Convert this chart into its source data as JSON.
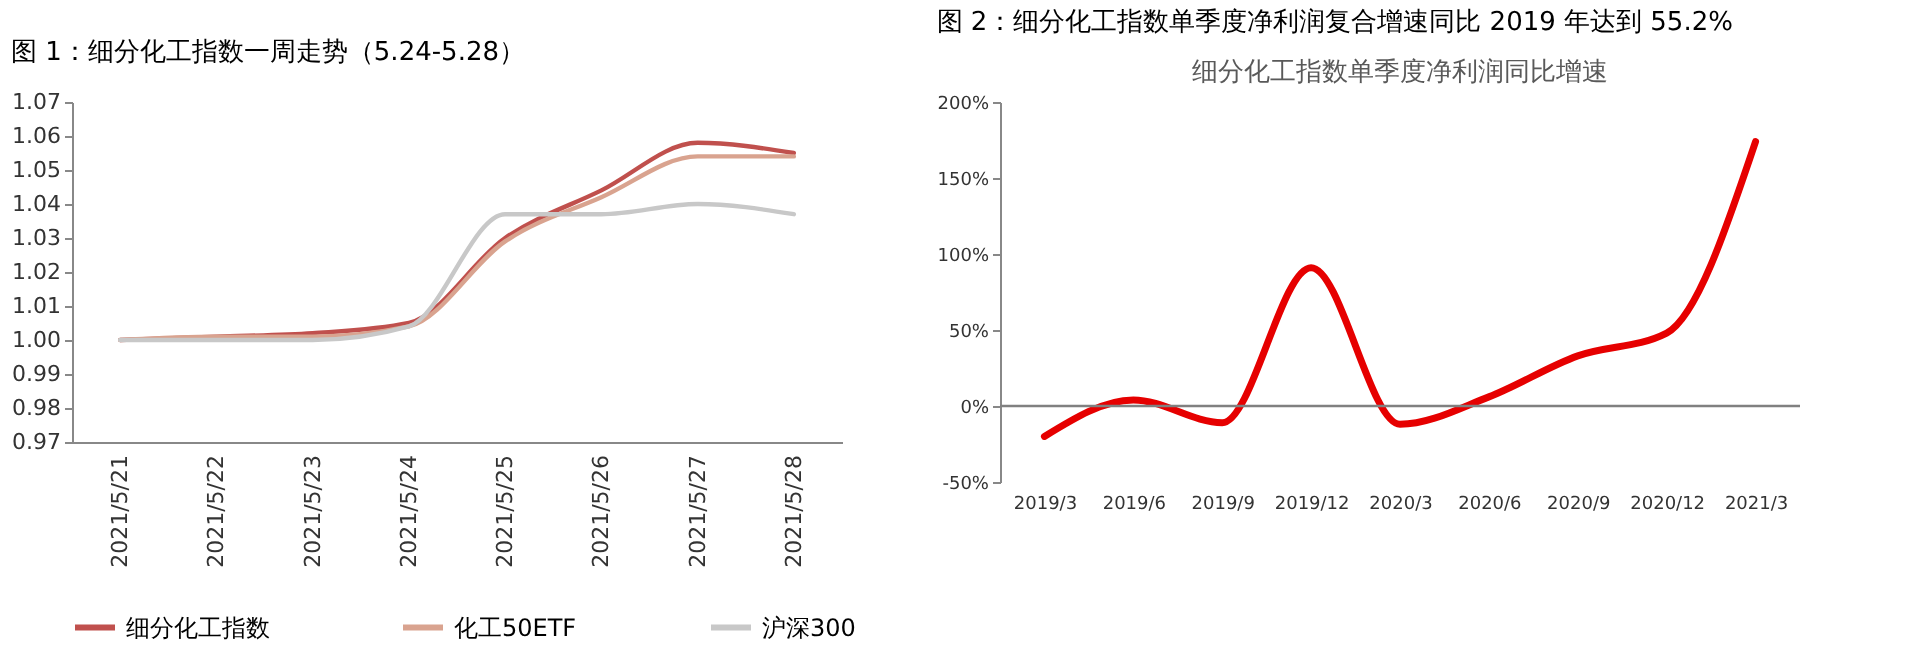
{
  "chart_data": [
    {
      "type": "line",
      "title": "图 1：细分化工指数一周走势（5.24-5.28）",
      "categories": [
        "2021/5/21",
        "2021/5/22",
        "2021/5/23",
        "2021/5/24",
        "2021/5/25",
        "2021/5/26",
        "2021/5/27",
        "2021/5/28"
      ],
      "series": [
        {
          "name": "细分化工指数",
          "color": "#c0504d",
          "values": [
            1.0,
            1.001,
            1.002,
            1.005,
            1.03,
            1.044,
            1.058,
            1.055
          ]
        },
        {
          "name": "化工50ETF",
          "color": "#d9a38f",
          "values": [
            1.0,
            1.001,
            1.001,
            1.004,
            1.029,
            1.042,
            1.054,
            1.054
          ]
        },
        {
          "name": "沪深300",
          "color": "#c8c8c8",
          "values": [
            1.0,
            1.0,
            1.0,
            1.004,
            1.037,
            1.037,
            1.04,
            1.037
          ]
        }
      ],
      "ylim": [
        0.97,
        1.07
      ],
      "yticks": [
        {
          "value": 0.97,
          "label": "0.97"
        },
        {
          "value": 0.98,
          "label": "0.98"
        },
        {
          "value": 0.99,
          "label": "0.99"
        },
        {
          "value": 1.0,
          "label": "1.00"
        },
        {
          "value": 1.01,
          "label": "1.01"
        },
        {
          "value": 1.02,
          "label": "1.02"
        },
        {
          "value": 1.03,
          "label": "1.03"
        },
        {
          "value": 1.04,
          "label": "1.04"
        },
        {
          "value": 1.05,
          "label": "1.05"
        },
        {
          "value": 1.06,
          "label": "1.06"
        },
        {
          "value": 1.07,
          "label": "1.07"
        }
      ],
      "legend": "bottom"
    },
    {
      "type": "line",
      "title": "图 2：细分化工指数单季度净利润复合增速同比 2019 年达到 55.2%",
      "subtitle": "细分化工指数单季度净利润同比增速",
      "categories": [
        "2019/3",
        "2019/6",
        "2019/9",
        "2019/12",
        "2020/3",
        "2020/6",
        "2020/9",
        "2020/12",
        "2021/3"
      ],
      "series": [
        {
          "color": "#e60000",
          "values": [
            -20,
            4,
            -11,
            91,
            -12,
            6,
            33,
            48,
            174
          ]
        }
      ],
      "ylim": [
        -50,
        200
      ],
      "yticks": [
        {
          "value": -50,
          "label": "-50%"
        },
        {
          "value": 0,
          "label": "0%"
        },
        {
          "value": 50,
          "label": "50%"
        },
        {
          "value": 100,
          "label": "100%"
        },
        {
          "value": 150,
          "label": "150%"
        },
        {
          "value": 200,
          "label": "200%"
        }
      ],
      "ref_lines": [
        {
          "axis": "y",
          "value": 0,
          "color": "#808080"
        }
      ]
    }
  ]
}
